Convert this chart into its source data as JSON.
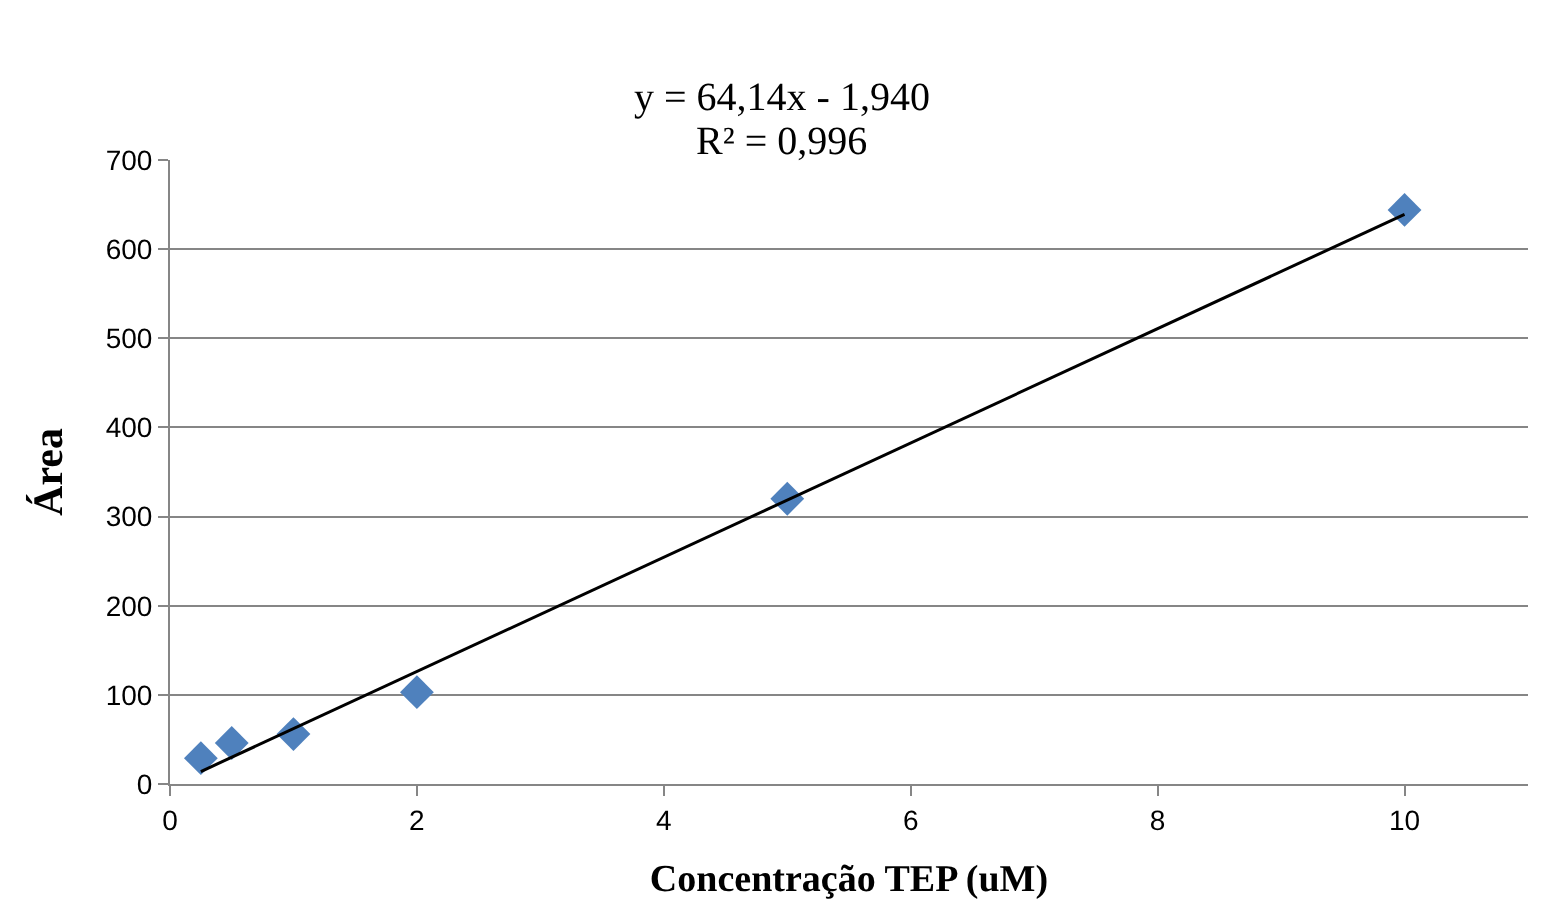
{
  "chart_data": {
    "type": "scatter",
    "xlabel": "Concentração TEP (uM)",
    "ylabel": "Área",
    "annotations": [
      "y = 64,14x - 1,940",
      "R² = 0,996"
    ],
    "x": [
      0.25,
      0.5,
      1,
      2,
      5,
      10
    ],
    "series": [
      {
        "color": "#4f81bd",
        "marker": "diamond",
        "values": [
          29,
          46,
          56,
          103,
          320,
          644
        ]
      },
      {
        "type": "line",
        "color": "#000000",
        "x": [
          0.25,
          10
        ],
        "values": [
          14,
          639
        ],
        "marker": "none",
        "line_style": "solid"
      }
    ],
    "xlim": [
      0,
      11
    ],
    "xticks": [
      0,
      2,
      4,
      6,
      8,
      10
    ],
    "ylim": [
      0,
      700
    ],
    "yticks": [
      0,
      100,
      200,
      300,
      400,
      500,
      600,
      700
    ],
    "grid": "y"
  }
}
